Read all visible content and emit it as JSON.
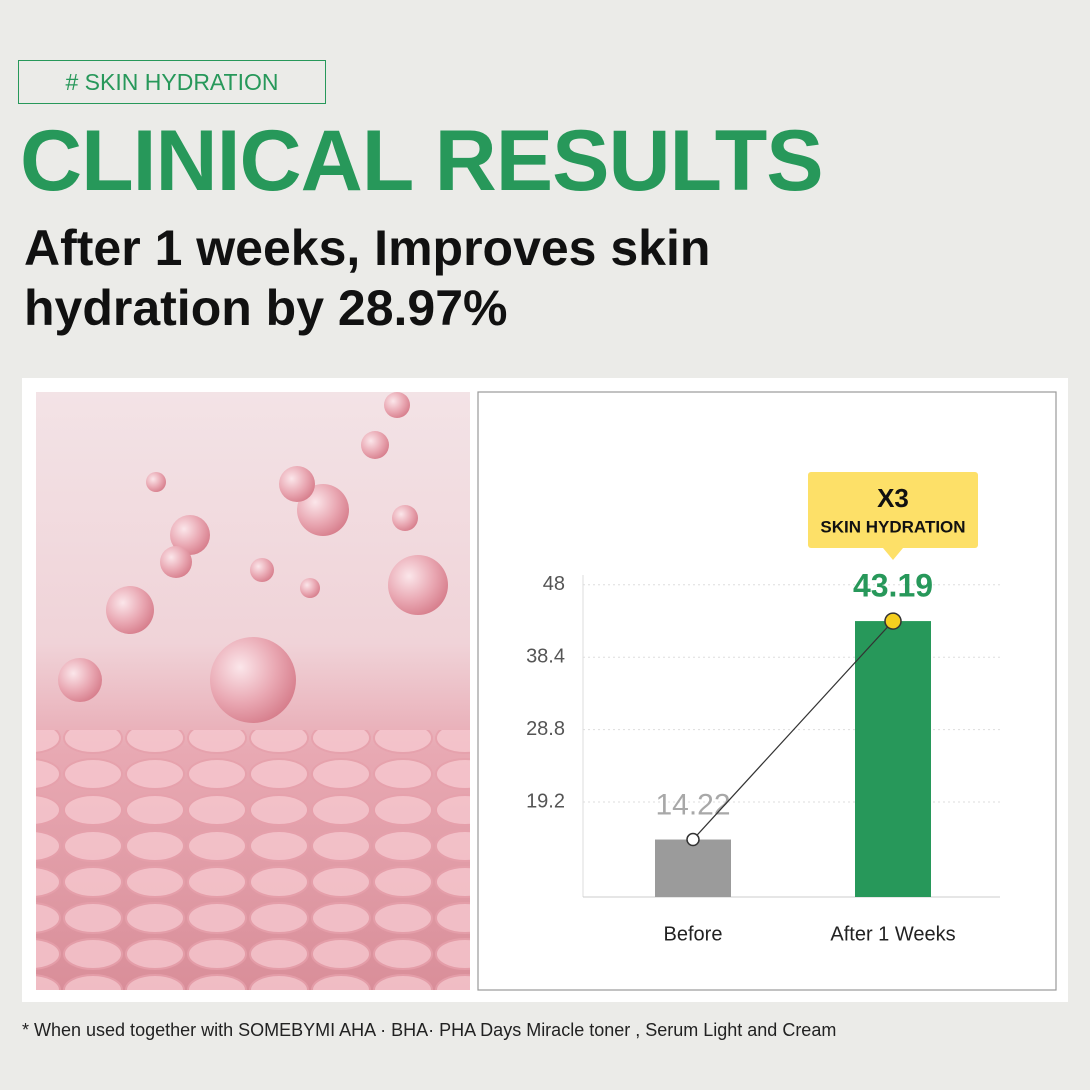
{
  "tag": "# SKIN HYDRATION",
  "headline": "CLINICAL RESULTS",
  "subtitle_lines": [
    "After 1 weeks, Improves skin",
    "hydration by 28.97%"
  ],
  "footnote": "* When used together with SOMEBYMI AHA · BHA· PHA Days Miracle toner , Serum Light and Cream",
  "chart_data": {
    "type": "bar",
    "categories": [
      "Before",
      "After 1 Weeks"
    ],
    "values": [
      14.22,
      43.19
    ],
    "colors": [
      "#9b9b9b",
      "#27985a"
    ],
    "label_colors": [
      "#a8a8a8",
      "#27985a"
    ],
    "ylim": [
      6.6,
      49.3
    ],
    "yticks": [
      19.2,
      28.8,
      38.4,
      48
    ],
    "grid": true,
    "connector_line": true,
    "annotation": {
      "title": "X3",
      "text": "SKIN HYDRATION",
      "color": "#fde068"
    }
  }
}
